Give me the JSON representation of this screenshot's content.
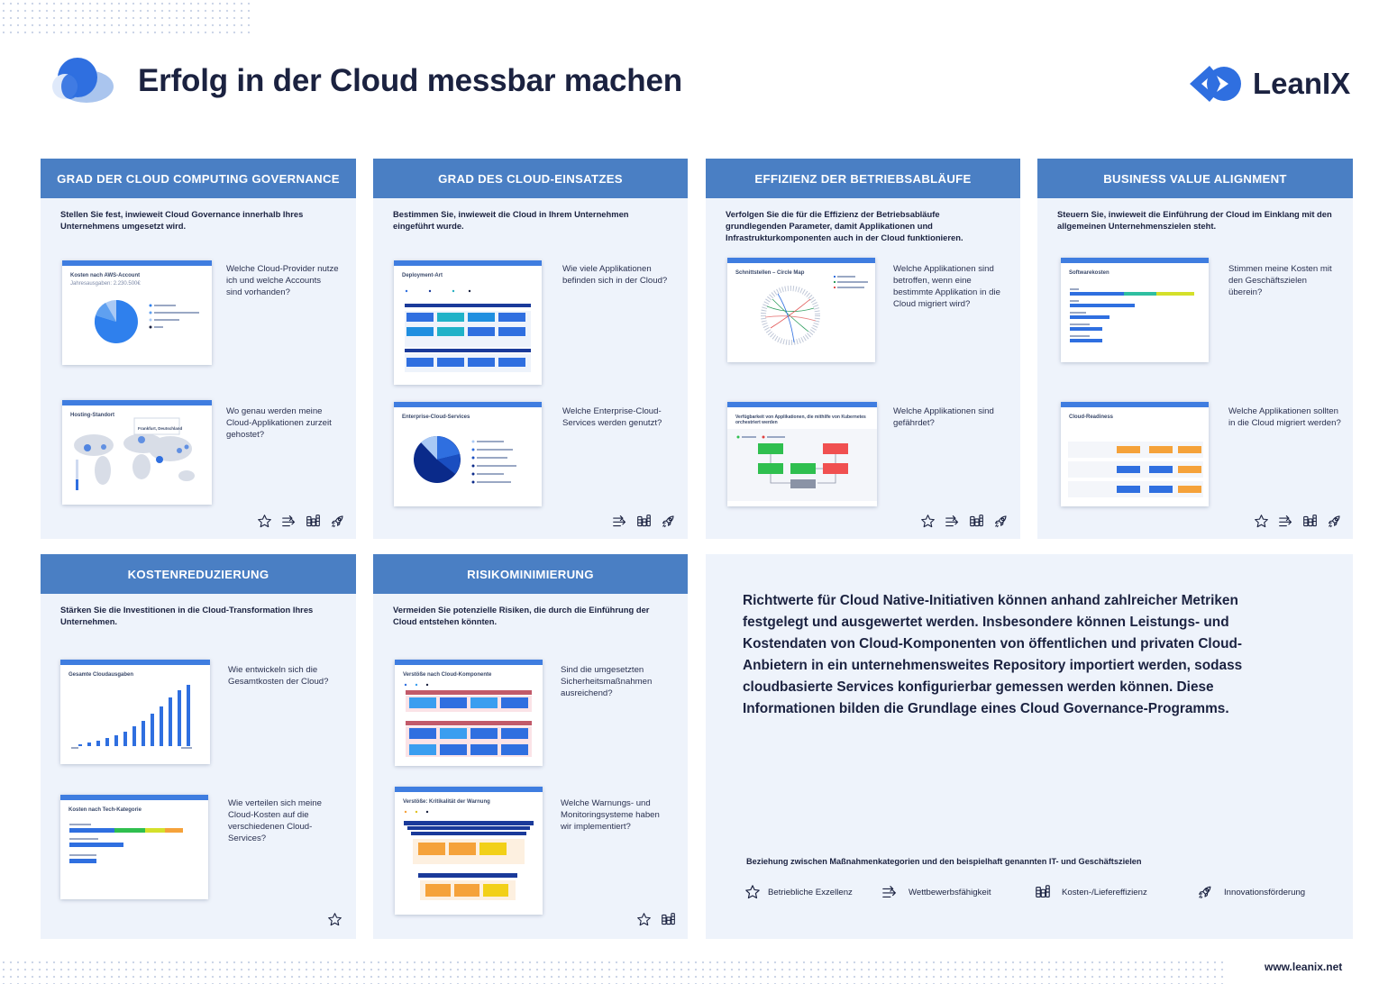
{
  "header": {
    "title": "Erfolg in der Cloud messbar machen",
    "brand_name": "LeanIX"
  },
  "cards": [
    {
      "heading": "GRAD DER CLOUD COMPUTING GOVERNANCE",
      "intro": "Stellen Sie fest, inwieweit Cloud Governance innerhalb Ihres Unternehmens umgesetzt wird.",
      "thumb1_title": "Kosten nach AWS-Account",
      "thumb1_sub": "Jahresausgaben: 2.230.500€",
      "q1": "Welche Cloud-Provider nutze ich und welche Accounts sind vorhanden?",
      "thumb2_title": "Hosting-Standort",
      "thumb2_label": "Frankfurt, Deutschland",
      "q2": "Wo genau werden meine Cloud-Applikationen zurzeit gehostet?"
    },
    {
      "heading": "GRAD DES CLOUD-EINSATZES",
      "intro": "Bestimmen Sie, inwieweit die Cloud in Ihrem Unternehmen eingeführt wurde.",
      "thumb1_title": "Deployment-Art",
      "q1": "Wie viele Applikationen befinden sich in der Cloud?",
      "thumb2_title": "Enterprise-Cloud-Services",
      "q2": "Welche Enterprise-Cloud-Services werden genutzt?"
    },
    {
      "heading": "EFFIZIENZ DER BETRIEBSABLÄUFE",
      "intro": "Verfolgen Sie die für die Effizienz der Betriebsabläufe grundlegenden Parameter, damit Applikationen und Infrastrukturkomponenten auch in der Cloud funktionieren.",
      "thumb1_title": "Schnittstellen – Circle Map",
      "q1": "Welche Applikationen sind betroffen, wenn eine bestimmte Applikation in die Cloud migriert wird?",
      "thumb2_title": "Verfügbarkeit von Applikationen, die mithilfe von Kubernetes orchestriert werden",
      "q2": "Welche Applikationen sind gefährdet?"
    },
    {
      "heading": "BUSINESS VALUE ALIGNMENT",
      "intro": "Steuern Sie, inwieweit die Einführung der Cloud im Einklang mit den allgemeinen Unternehmenszielen steht.",
      "thumb1_title": "Softwarekosten",
      "q1": "Stimmen meine Kosten mit den Geschäftszielen überein?",
      "thumb2_title": "Cloud-Readiness",
      "q2": "Welche Applikationen sollten in die Cloud migriert werden?"
    },
    {
      "heading": "KOSTENREDUZIERUNG",
      "intro": "Stärken Sie die Investitionen in die Cloud-Transformation Ihres Unternehmen.",
      "thumb1_title": "Gesamte Cloudausgaben",
      "q1": "Wie entwickeln sich die Gesamtkosten der Cloud?",
      "thumb2_title": "Kosten nach Tech-Kategorie",
      "q2": "Wie verteilen sich meine Cloud-Kosten auf die verschiedenen Cloud-Services?"
    },
    {
      "heading": "RISIKOMINIMIERUNG",
      "intro": "Vermeiden Sie potenzielle Risiken, die durch die Einführung der Cloud entstehen könnten.",
      "thumb1_title": "Verstöße nach Cloud-Komponente",
      "q1": "Sind die umgesetzten Sicherheitsmaßnahmen ausreichend?",
      "thumb2_title": "Verstöße: Kritikalität der Warnung",
      "q2": "Welche Warnungs- und Monitoringsysteme haben wir implementiert?"
    }
  ],
  "summary": {
    "text": "Richtwerte für Cloud Native-Initiativen können anhand zahlreicher Metriken festgelegt und ausgewertet werden. Insbesondere können Leistungs- und Kostendaten von Cloud-Komponenten  von öffentlichen und privaten Cloud-Anbietern in ein unternehmensweites Repository importiert werden, sodass cloudbasierte Services konfigurierbar gemessen werden können. Diese Informationen bilden die Grundlage eines Cloud Governance-Programms.",
    "legend_caption": "Beziehung zwischen Maßnahmenkategorien und den beispielhaft genannten IT- und Geschäftszielen",
    "legend": [
      {
        "icon": "star-icon",
        "label": "Betriebliche Exzellenz"
      },
      {
        "icon": "arrows-icon",
        "label": "Wettbewerbsfähigkeit"
      },
      {
        "icon": "coins-icon",
        "label": "Kosten-/Liefereffizienz"
      },
      {
        "icon": "rocket-icon",
        "label": "Innovationsförderung"
      }
    ]
  },
  "footer": {
    "url": "www.leanix.net"
  },
  "colors": {
    "header_blue": "#4a7fc4",
    "card_bg": "#eef3fb",
    "title_dark": "#1b2240",
    "accent_blue": "#3f7de0"
  }
}
